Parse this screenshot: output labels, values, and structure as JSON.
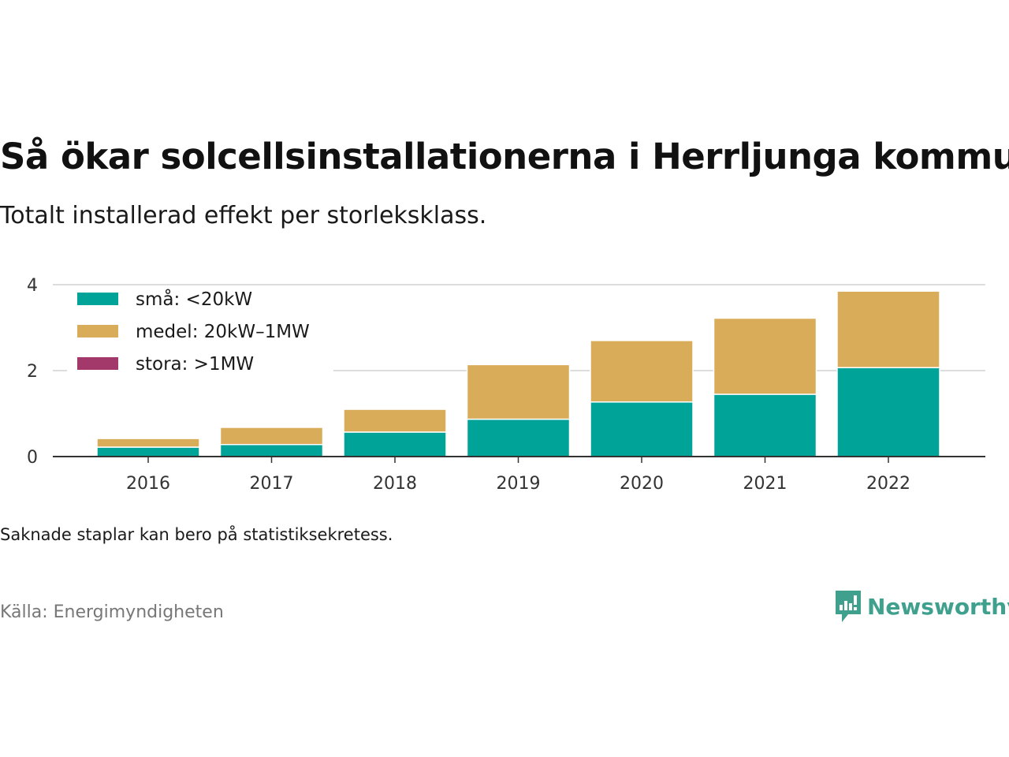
{
  "title": "Så ökar solcellsinstallationerna i Herrljunga kommun",
  "subtitle": "Totalt installerad effekt per storleksklass.",
  "note": "Saknade staplar kan bero på statistiksekretess.",
  "source": "Källa: Energimyndigheten",
  "logo": {
    "text": "Newsworthy",
    "icon": "newsworthy-logo-icon",
    "color": "#3fa08e"
  },
  "chart_data": {
    "type": "bar",
    "stacked": true,
    "categories": [
      "2016",
      "2017",
      "2018",
      "2019",
      "2020",
      "2021",
      "2022"
    ],
    "series": [
      {
        "name": "små: <20kW",
        "color": "#00a398",
        "values": [
          0.22,
          0.28,
          0.57,
          0.87,
          1.27,
          1.45,
          2.07
        ]
      },
      {
        "name": "medel: 20kW–1MW",
        "color": "#d9ac59",
        "values": [
          0.2,
          0.4,
          0.53,
          1.27,
          1.43,
          1.77,
          1.78
        ]
      },
      {
        "name": "stora: >1MW",
        "color": "#a3396b",
        "values": [
          0,
          0,
          0,
          0,
          0,
          0,
          0
        ]
      }
    ],
    "ylim": [
      0,
      4
    ],
    "yticks": [
      0,
      2,
      4
    ],
    "grid": true,
    "legend": "top-left"
  }
}
